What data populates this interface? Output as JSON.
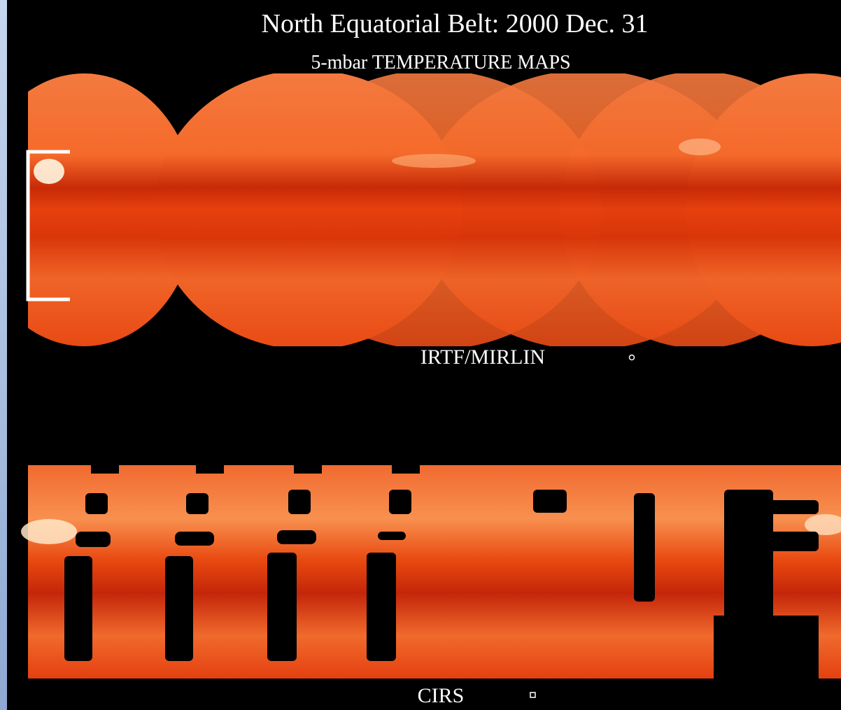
{
  "title": "North Equatorial Belt: 2000 Dec. 31",
  "subtitle": "5-mbar TEMPERATURE MAPS",
  "panels": [
    {
      "label": "IRTF/MIRLIN"
    },
    {
      "label": "CIRS"
    }
  ]
}
